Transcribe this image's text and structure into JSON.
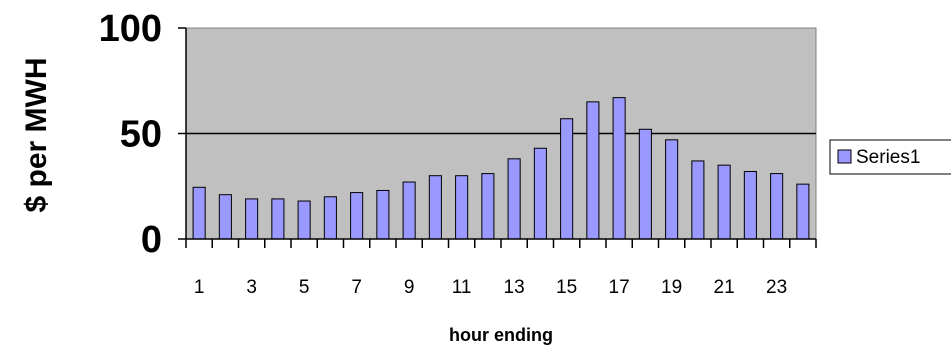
{
  "chart_data": {
    "type": "bar",
    "categories": [
      "1",
      "2",
      "3",
      "4",
      "5",
      "6",
      "7",
      "8",
      "9",
      "10",
      "11",
      "12",
      "13",
      "14",
      "15",
      "16",
      "17",
      "18",
      "19",
      "20",
      "21",
      "22",
      "23",
      "24"
    ],
    "x_tick_labels": [
      "1",
      "3",
      "5",
      "7",
      "9",
      "11",
      "13",
      "15",
      "17",
      "19",
      "21",
      "23"
    ],
    "series": [
      {
        "name": "Series1",
        "values": [
          24.5,
          21,
          19,
          19,
          18,
          20,
          22,
          23,
          27,
          30,
          30,
          31,
          38,
          43,
          57,
          65,
          67,
          52,
          47,
          37,
          35,
          32,
          31,
          26
        ],
        "color": "#9999FF"
      }
    ],
    "title": "",
    "xlabel": "hour ending",
    "ylabel": "$ per MWH",
    "ylim": [
      0,
      100
    ],
    "y_ticks": [
      0,
      50,
      100
    ],
    "y_tick_labels": [
      "0",
      "50",
      "100"
    ],
    "grid": "horizontal at 50",
    "legend_position": "right",
    "plot_background": "#C0C0C0"
  }
}
